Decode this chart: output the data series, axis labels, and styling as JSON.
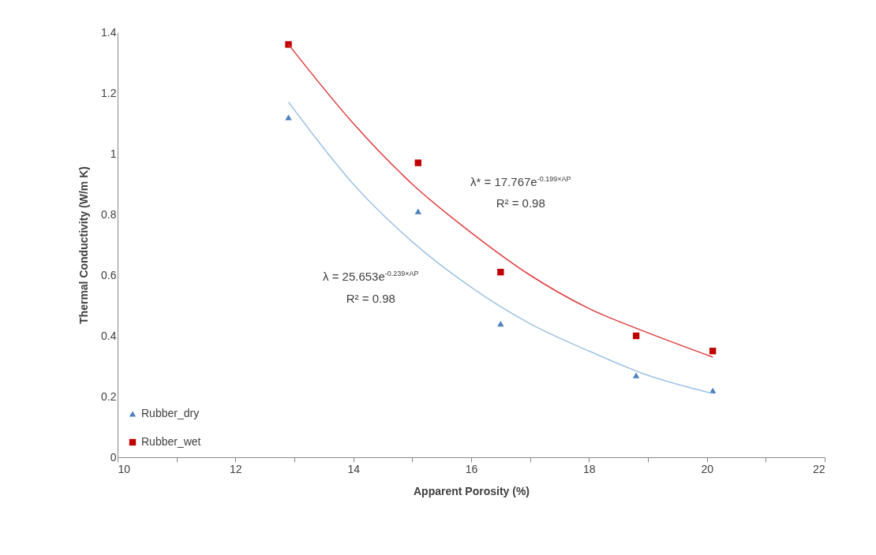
{
  "chart_data": {
    "type": "scatter",
    "xlabel": "Apparent Porosity (%)",
    "ylabel": "Thermal Conductivity (W/m K)",
    "xlim": [
      10,
      22
    ],
    "xticks": [
      10,
      {
        "value": 11,
        "label": null
      },
      12,
      {
        "value": 13,
        "label": null
      },
      14,
      {
        "value": 15,
        "label": null
      },
      16,
      {
        "value": 17,
        "label": null
      },
      18,
      {
        "value": 19,
        "label": null
      },
      20,
      {
        "value": 21,
        "label": null
      },
      22
    ],
    "ylim": [
      0,
      1.4
    ],
    "yticks": [
      0,
      0.2,
      0.4,
      0.6,
      0.8,
      1,
      1.2,
      1.4
    ],
    "grid": false,
    "legend": "bottom left",
    "series": [
      {
        "name": "Rubber_dry",
        "type": "scatter",
        "marker": "triangle",
        "color": "#4f81bd",
        "x": [
          12.9,
          15.1,
          16.5,
          18.8,
          20.1
        ],
        "values": [
          1.12,
          0.81,
          0.44,
          0.27,
          0.22
        ]
      },
      {
        "name": "Rubber_wet",
        "type": "scatter",
        "marker": "square",
        "color": "#c00000",
        "x": [
          12.9,
          15.1,
          16.5,
          18.8,
          20.1
        ],
        "values": [
          1.36,
          0.97,
          0.61,
          0.4,
          0.35
        ]
      },
      {
        "type": "line",
        "marker": "none",
        "color": "#9dc3e6",
        "x": [
          12.9,
          14,
          15,
          16,
          17,
          18,
          19,
          20.1
        ],
        "values": [
          1.17,
          0.9,
          0.71,
          0.56,
          0.44,
          0.35,
          0.27,
          0.21
        ]
      },
      {
        "type": "line",
        "marker": "none",
        "color": "#e03c3c",
        "x": [
          12.9,
          14,
          15,
          16,
          17,
          18,
          19,
          20.1
        ],
        "values": [
          1.36,
          1.1,
          0.9,
          0.74,
          0.6,
          0.49,
          0.41,
          0.33
        ]
      }
    ],
    "annotations": [
      "λ* = 17.767e$^{-0.199×AP}$",
      "R² = 0.98",
      "λ = 25.653e$^{-0.239×AP}$",
      "R² = 0.98"
    ]
  }
}
